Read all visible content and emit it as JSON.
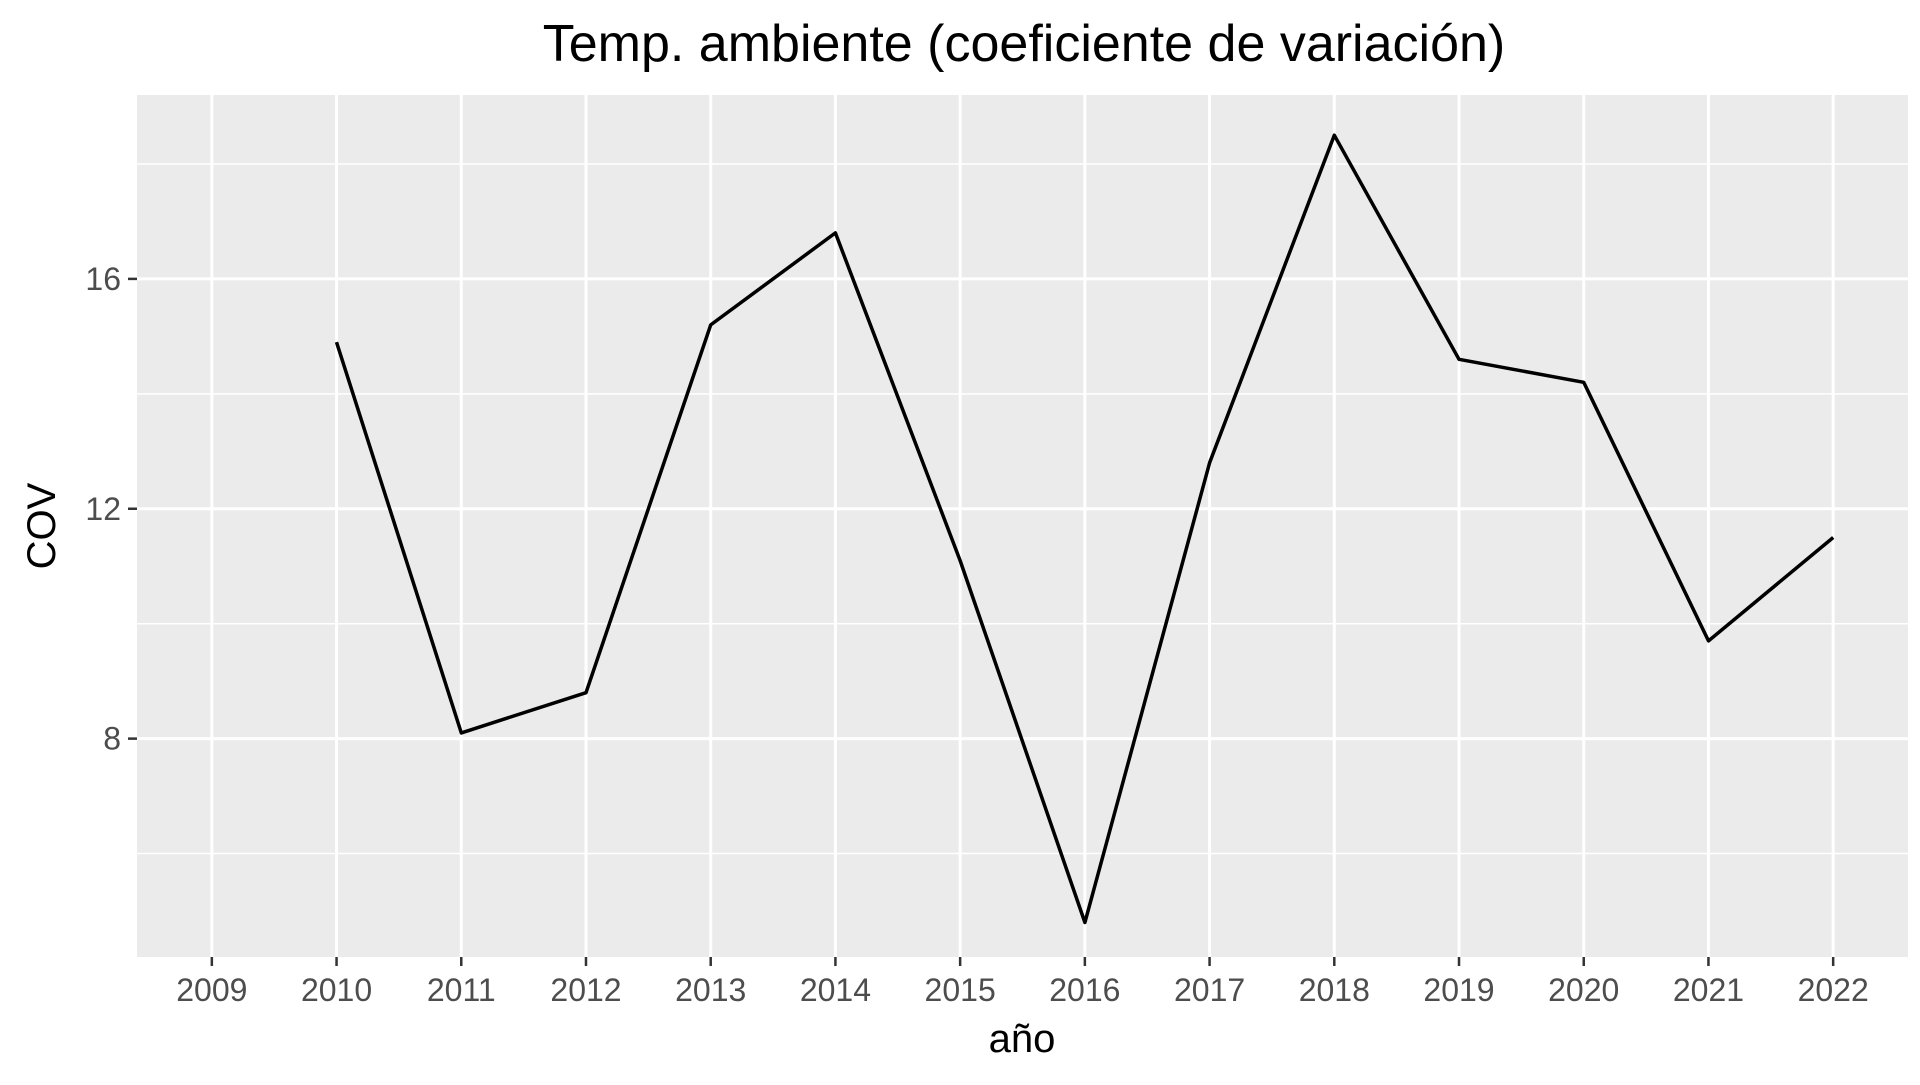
{
  "chart_data": {
    "type": "line",
    "title": "Temp. ambiente (coeficiente de variación)",
    "xlabel": "año",
    "ylabel": "COV",
    "x": [
      2010,
      2011,
      2012,
      2013,
      2014,
      2015,
      2016,
      2017,
      2018,
      2019,
      2020,
      2021,
      2022
    ],
    "series": [
      {
        "values": [
          14.9,
          8.1,
          8.8,
          15.2,
          16.8,
          11.1,
          4.8,
          12.8,
          18.5,
          14.6,
          14.2,
          9.7,
          11.5
        ]
      }
    ],
    "x_ticks": [
      "2009",
      "2010",
      "2011",
      "2012",
      "2013",
      "2014",
      "2015",
      "2016",
      "2017",
      "2018",
      "2019",
      "2020",
      "2021",
      "2022"
    ],
    "y_ticks": [
      8,
      12,
      16
    ],
    "ylim": [
      4.2,
      19.2
    ],
    "xlim": [
      2008.4,
      2022.6
    ],
    "grid": true,
    "background": "#ebebeb",
    "line_color": "#000000"
  }
}
